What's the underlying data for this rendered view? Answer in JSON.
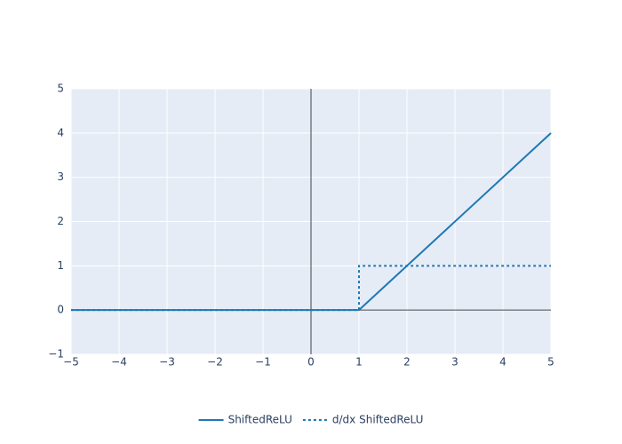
{
  "chart_data": {
    "type": "line",
    "series": [
      {
        "name": "ShiftedReLU",
        "color": "#1f77b4",
        "dash": "solid",
        "x": [
          -5,
          1,
          5
        ],
        "values": [
          0,
          0,
          4
        ]
      },
      {
        "name": "d/dx ShiftedReLU",
        "color": "#1f77b4",
        "dash": "dot",
        "x": [
          -5,
          1,
          1,
          5
        ],
        "values": [
          0,
          0,
          1,
          1
        ]
      }
    ],
    "xlim": [
      -5,
      5
    ],
    "xticks": [
      {
        "value": -5,
        "label": "−5"
      },
      {
        "value": -4,
        "label": "−4"
      },
      {
        "value": -3,
        "label": "−3"
      },
      {
        "value": -2,
        "label": "−2"
      },
      {
        "value": -1,
        "label": "−1"
      },
      0,
      1,
      2,
      3,
      4,
      5
    ],
    "ylim": [
      -1,
      5
    ],
    "yticks": [
      {
        "value": -1,
        "label": "−1"
      },
      0,
      1,
      2,
      3,
      4,
      5
    ],
    "grid": true,
    "zeroline": true,
    "legend": "bottom"
  }
}
